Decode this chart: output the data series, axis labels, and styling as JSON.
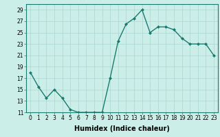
{
  "x": [
    0,
    1,
    2,
    3,
    4,
    5,
    6,
    7,
    8,
    9,
    10,
    11,
    12,
    13,
    14,
    15,
    16,
    17,
    18,
    19,
    20,
    21,
    22,
    23
  ],
  "y": [
    18,
    15.5,
    13.5,
    15,
    13.5,
    11.5,
    11,
    11,
    11,
    11,
    17,
    23.5,
    26.5,
    27.5,
    29,
    25,
    26,
    26,
    25.5,
    24,
    23,
    23,
    23,
    21
  ],
  "line_color": "#1a7a6e",
  "marker": "D",
  "marker_size": 2.0,
  "bg_color": "#cceee9",
  "grid_color": "#aad6d0",
  "xlabel": "Humidex (Indice chaleur)",
  "ylim": [
    11,
    30
  ],
  "yticks": [
    11,
    13,
    15,
    17,
    19,
    21,
    23,
    25,
    27,
    29
  ],
  "xticks": [
    0,
    1,
    2,
    3,
    4,
    5,
    6,
    7,
    8,
    9,
    10,
    11,
    12,
    13,
    14,
    15,
    16,
    17,
    18,
    19,
    20,
    21,
    22,
    23
  ],
  "xtick_labels": [
    "0",
    "1",
    "2",
    "3",
    "4",
    "5",
    "6",
    "7",
    "8",
    "9",
    "10",
    "11",
    "12",
    "13",
    "14",
    "15",
    "16",
    "17",
    "18",
    "19",
    "20",
    "21",
    "22",
    "23"
  ],
  "tick_fontsize": 5.5,
  "xlabel_fontsize": 7.0,
  "line_width": 1.0
}
